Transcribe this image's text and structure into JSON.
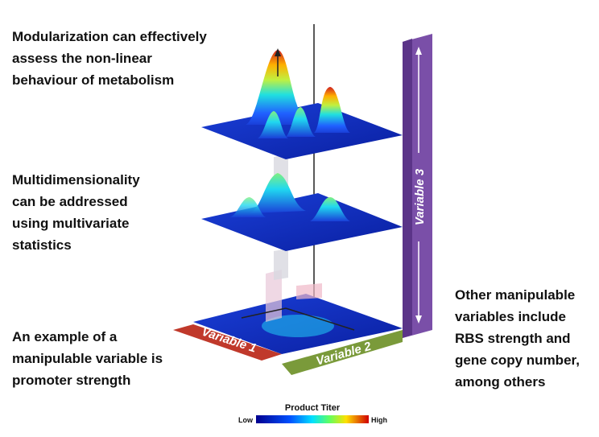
{
  "annotations": [
    {
      "lines": [
        "Modularization can effectively",
        "assess the non-linear",
        "behaviour of metabolism"
      ]
    },
    {
      "lines": [
        "Multidimensionality",
        "can be addressed",
        "using multivariate",
        "statistics"
      ]
    },
    {
      "lines": [
        "An example of a",
        "manipulable variable is",
        "promoter strength"
      ]
    },
    {
      "lines": [
        "Other manipulable",
        "variables include",
        "RBS strength and",
        "gene copy number,",
        "among others"
      ]
    }
  ],
  "axes": {
    "variable_1": "Variable 1",
    "variable_2": "Variable 2",
    "variable_3": "Variable 3"
  },
  "legend": {
    "title": "Product Titer",
    "low": "Low",
    "high": "High"
  }
}
